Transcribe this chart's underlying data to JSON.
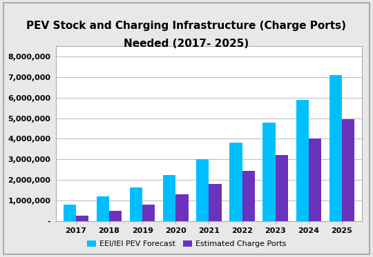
{
  "title_line1": "PEV Stock and Charging Infrastructure (Charge Ports)",
  "title_line2": "Needed (2017- 2025)",
  "years": [
    2017,
    2018,
    2019,
    2020,
    2021,
    2022,
    2023,
    2024,
    2025
  ],
  "pev_forecast": [
    800000,
    1200000,
    1650000,
    2250000,
    3000000,
    3800000,
    4800000,
    5900000,
    7100000
  ],
  "charge_ports": [
    250000,
    500000,
    800000,
    1300000,
    1800000,
    2450000,
    3200000,
    4000000,
    4950000
  ],
  "pev_color": "#00BFFF",
  "charge_color": "#6B32BE",
  "legend_pev": "EEI/IEI PEV Forecast",
  "legend_charge": "Estimated Charge Ports",
  "ylim": [
    0,
    8500000
  ],
  "yticks": [
    0,
    1000000,
    2000000,
    3000000,
    4000000,
    5000000,
    6000000,
    7000000,
    8000000
  ],
  "background_color": "#FFFFFF",
  "outer_background": "#E8E8E8",
  "grid_color": "#C0C0C0",
  "bar_width": 0.38
}
